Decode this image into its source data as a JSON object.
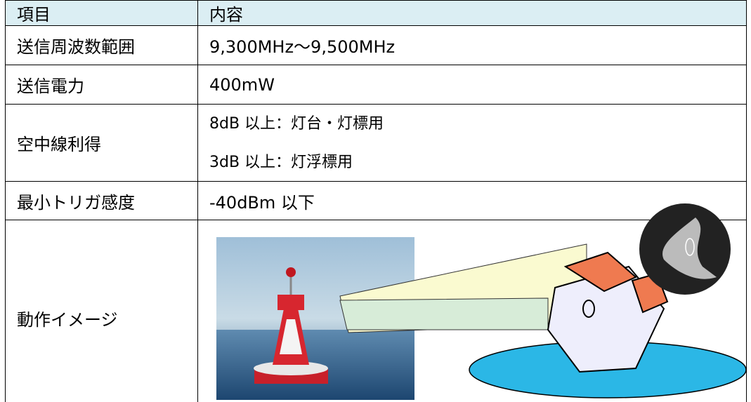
{
  "table": {
    "header": [
      "項目",
      "内容"
    ],
    "rows": [
      [
        "送信周波数範囲",
        "9,300MHz～9,500MHz"
      ],
      [
        "送信電力",
        "400mW"
      ],
      [
        "空中線利得",
        "8dB 以上：灯台・灯標用",
        "3dB 以上：灯浮標用"
      ],
      [
        "最小トリガ感度",
        "-40dBm 以下"
      ],
      [
        "動作イメージ"
      ]
    ]
  }
}
